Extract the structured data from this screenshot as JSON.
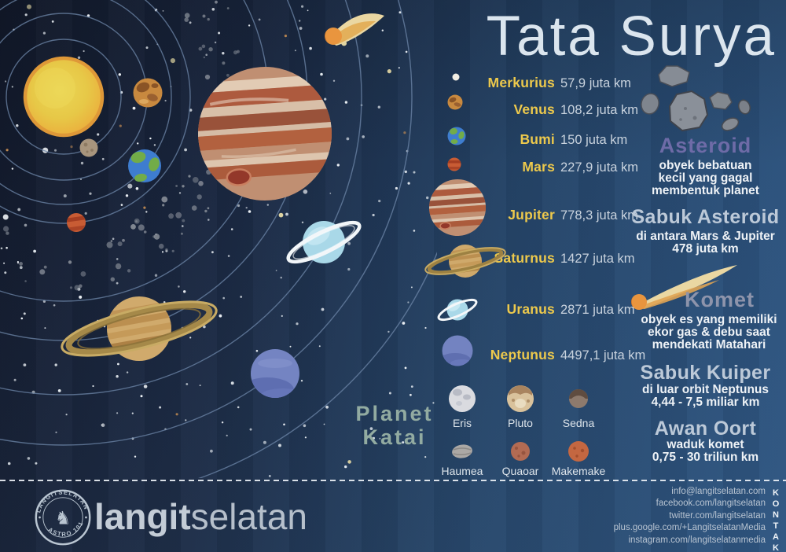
{
  "title": "Tata Surya",
  "planets": [
    {
      "name": "Merkurius",
      "distance": "57,9 juta km"
    },
    {
      "name": "Venus",
      "distance": "108,2 juta km"
    },
    {
      "name": "Bumi",
      "distance": "150 juta km"
    },
    {
      "name": "Mars",
      "distance": "227,9 juta km"
    },
    {
      "name": "Jupiter",
      "distance": "778,3 juta km"
    },
    {
      "name": "Saturnus",
      "distance": "1427 juta km"
    },
    {
      "name": "Uranus",
      "distance": "2871 juta km"
    },
    {
      "name": "Neptunus",
      "distance": "4497,1 juta km"
    }
  ],
  "dwarf": {
    "title": "Planet\nKatai",
    "items": [
      "Eris",
      "Pluto",
      "Sedna",
      "Haumea",
      "Quaoar",
      "Makemake"
    ]
  },
  "sections": {
    "asteroid": {
      "title": "Asteroid",
      "desc": "obyek bebatuan\nkecil yang gagal\nmembentuk planet"
    },
    "sabuk_asteroid": {
      "title": "Sabuk Asteroid",
      "desc": "di antara Mars & Jupiter\n478 juta km"
    },
    "komet": {
      "title": "Komet",
      "desc": "obyek es yang memiliki\nekor gas & debu saat\nmendekati Matahari"
    },
    "sabuk_kuiper": {
      "title": "Sabuk Kuiper",
      "desc": "di luar orbit Neptunus\n4,44 - 7,5 miliar km"
    },
    "awan_oort": {
      "title": "Awan Oort",
      "desc": "waduk komet\n0,75 - 30 triliun km"
    }
  },
  "footer": {
    "logo_arc_top": "LANGITSELATAN",
    "logo_arc_bottom": "ASTRO 101",
    "brand_bold": "langit",
    "brand_light": "selatan",
    "kontak_label": "KONTAK",
    "contacts": [
      "info@langitselatan.com",
      "facebook.com/langitselatan",
      "twitter.com/langitselatan",
      "plus.google.com/+LangitselatanMedia",
      "instagram.com/langitselatanmedia"
    ]
  },
  "colors": {
    "accent_yellow": "#edc94c",
    "accent_purple": "#6e6ba7",
    "accent_gray_purple": "#8e94ab",
    "accent_sage": "#92aba1",
    "header_blue": "#bcc9d8",
    "background_dark": "#131a2c",
    "background_light": "#2d5480"
  }
}
